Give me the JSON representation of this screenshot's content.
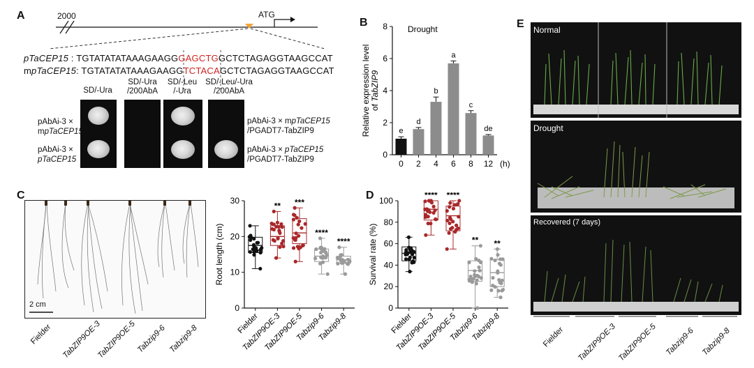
{
  "figure": {
    "panels": [
      "A",
      "B",
      "C",
      "D",
      "E"
    ]
  },
  "panelA": {
    "scale_number": "2000",
    "atg_label": "ATG",
    "seq_wt_name": "pTaCEP15",
    "seq_wt_prefix": "TGTATATATAAAGAAGG",
    "seq_wt_motif": "GAGCTG",
    "seq_wt_suffix": "GCTCTAGAGGTAAGCCAT",
    "seq_mut_name_prefix": "m",
    "seq_mut_name": "pTaCEP15",
    "seq_mut_prefix": "TGTATATATAAAGAAGG",
    "seq_mut_motif": "TCTACA",
    "seq_mut_suffix": "GCTCTAGAGGTAAGCCAT",
    "columns": [
      "SD/-Ura",
      "SD/-Ura\n/200AbA",
      "SD/-Leu\n/-Ura",
      "SD/-Leu/-Ura\n/200AbA"
    ],
    "left_rows": [
      {
        "line1": "pAbAi-3 ×",
        "line2_prefix": "m",
        "line2_italic": "pTaCEP15"
      },
      {
        "line1": "pAbAi-3 ×",
        "line2_prefix": "",
        "line2_italic": "pTaCEP15"
      }
    ],
    "right_rows": [
      {
        "line1_prefix": "pAbAi-3 × m",
        "line1_italic": "pTaCEP15",
        "line2": "/PGADT7-TabZIP9"
      },
      {
        "line1_prefix": "pAbAi-3 × ",
        "line1_italic": "pTaCEP15",
        "line2": "/PGADT7-TabZIP9"
      }
    ]
  },
  "panelC": {
    "scale_bar": "2 cm",
    "genotypes": [
      "Fielder",
      "TabZIP9OE-3",
      "TabZIP9OE-5",
      "Tabzip9-6",
      "Tabzip9-8"
    ]
  },
  "panelE": {
    "conditions": [
      "Normal",
      "Drought",
      "Recovered (7 days)"
    ],
    "genotypes": [
      "Fielder",
      "TabZIP9OE-3",
      "TabZIP9OE-5",
      "Tabzip9-6",
      "Tabzip9-8"
    ]
  },
  "chart_data": [
    {
      "id": "B",
      "type": "bar",
      "annotation": "Drought",
      "ylabel": "Relative expression level of TabZIP9",
      "xlabel": "(h)",
      "categories": [
        "0",
        "2",
        "4",
        "6",
        "8",
        "12"
      ],
      "values": [
        1.0,
        1.6,
        3.3,
        5.7,
        2.6,
        1.2
      ],
      "errors": [
        0.12,
        0.1,
        0.3,
        0.15,
        0.15,
        0.06
      ],
      "letters": [
        "e",
        "d",
        "b",
        "a",
        "c",
        "de"
      ],
      "colors": [
        "#111111",
        "#8c8c8c",
        "#8c8c8c",
        "#8c8c8c",
        "#8c8c8c",
        "#8c8c8c"
      ],
      "ylim": [
        0,
        8
      ],
      "yticks": [
        0,
        2,
        4,
        6,
        8
      ]
    },
    {
      "id": "C",
      "type": "scatter",
      "ylabel": "Root length (cm)",
      "categories": [
        "Fielder",
        "TabZIP9OE-3",
        "TabZIP9OE-5",
        "Tabzip9-6",
        "Tabzip9-8"
      ],
      "box": [
        {
          "min": 11,
          "q1": 15.5,
          "median": 17.5,
          "q3": 19.8,
          "max": 23
        },
        {
          "min": 14,
          "q1": 17.5,
          "median": 20,
          "q3": 23,
          "max": 27
        },
        {
          "min": 13,
          "q1": 18,
          "median": 21,
          "q3": 25,
          "max": 28
        },
        {
          "min": 9.5,
          "q1": 13,
          "median": 14.5,
          "q3": 16.5,
          "max": 19.5
        },
        {
          "min": 9.5,
          "q1": 12.5,
          "median": 13.5,
          "q3": 14.5,
          "max": 17
        }
      ],
      "significance": [
        "",
        "**",
        "***",
        "****",
        "****"
      ],
      "colors": [
        "#111111",
        "#a8282a",
        "#a8282a",
        "#9a9a9a",
        "#9a9a9a"
      ],
      "ylim": [
        0,
        30
      ],
      "yticks": [
        0,
        10,
        20,
        30
      ]
    },
    {
      "id": "D",
      "type": "scatter",
      "ylabel": "Survival rate (%)",
      "categories": [
        "Fielder",
        "TabZIP9OE-3",
        "TabZIP9OE-5",
        "Tabzip9-6",
        "Tabzip9-8"
      ],
      "box": [
        {
          "min": 34,
          "q1": 44,
          "median": 51,
          "q3": 57,
          "max": 66
        },
        {
          "min": 68,
          "q1": 82,
          "median": 92,
          "q3": 100,
          "max": 100
        },
        {
          "min": 55,
          "q1": 72,
          "median": 86,
          "q3": 95,
          "max": 100
        },
        {
          "min": 0,
          "q1": 25,
          "median": 35,
          "q3": 44,
          "max": 58
        },
        {
          "min": 10,
          "q1": 20,
          "median": 33,
          "q3": 45,
          "max": 55
        }
      ],
      "significance": [
        "",
        "****",
        "****",
        "**",
        "**"
      ],
      "colors": [
        "#111111",
        "#a8282a",
        "#a8282a",
        "#9a9a9a",
        "#9a9a9a"
      ],
      "ylim": [
        0,
        100
      ],
      "yticks": [
        0,
        20,
        40,
        60,
        80,
        100
      ]
    }
  ]
}
